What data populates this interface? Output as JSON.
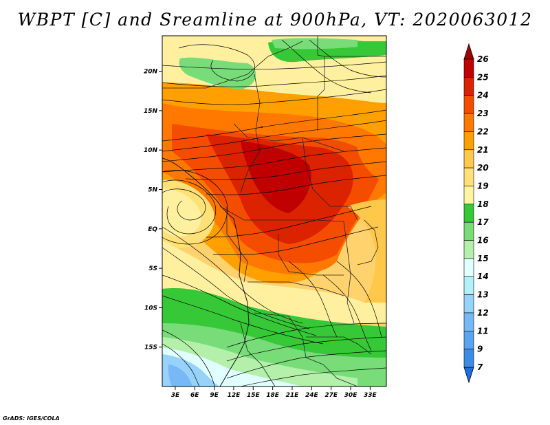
{
  "title": "WBPT [C] and Sreamline at 900hPa, VT: 2020063012",
  "credit": "GrADS: IGES/COLA",
  "map": {
    "y_ticks": [
      "20N",
      "15N",
      "10N",
      "5N",
      "EQ",
      "5S",
      "10S",
      "15S"
    ],
    "x_ticks": [
      "3E",
      "6E",
      "9E",
      "12E",
      "15E",
      "18E",
      "21E",
      "24E",
      "27E",
      "30E",
      "33E"
    ],
    "lon_range": [
      1,
      35.5
    ],
    "lat_range": [
      -20,
      24.5
    ]
  },
  "colorbar": {
    "labels": [
      "7",
      "9",
      "11",
      "12",
      "13",
      "14",
      "15",
      "16",
      "17",
      "18",
      "19",
      "20",
      "21",
      "22",
      "23",
      "24",
      "25",
      "26"
    ],
    "colors": [
      "#1e6edc",
      "#3c8ce6",
      "#5aa5f0",
      "#78b9f5",
      "#96d2fa",
      "#b4f0fa",
      "#e1ffff",
      "#b4f0aa",
      "#78dc78",
      "#37c837",
      "#fff5a0",
      "#ffe178",
      "#ffc84b",
      "#ffa000",
      "#ff7800",
      "#f54d00",
      "#dc2300",
      "#c00000",
      "#a00000"
    ]
  }
}
